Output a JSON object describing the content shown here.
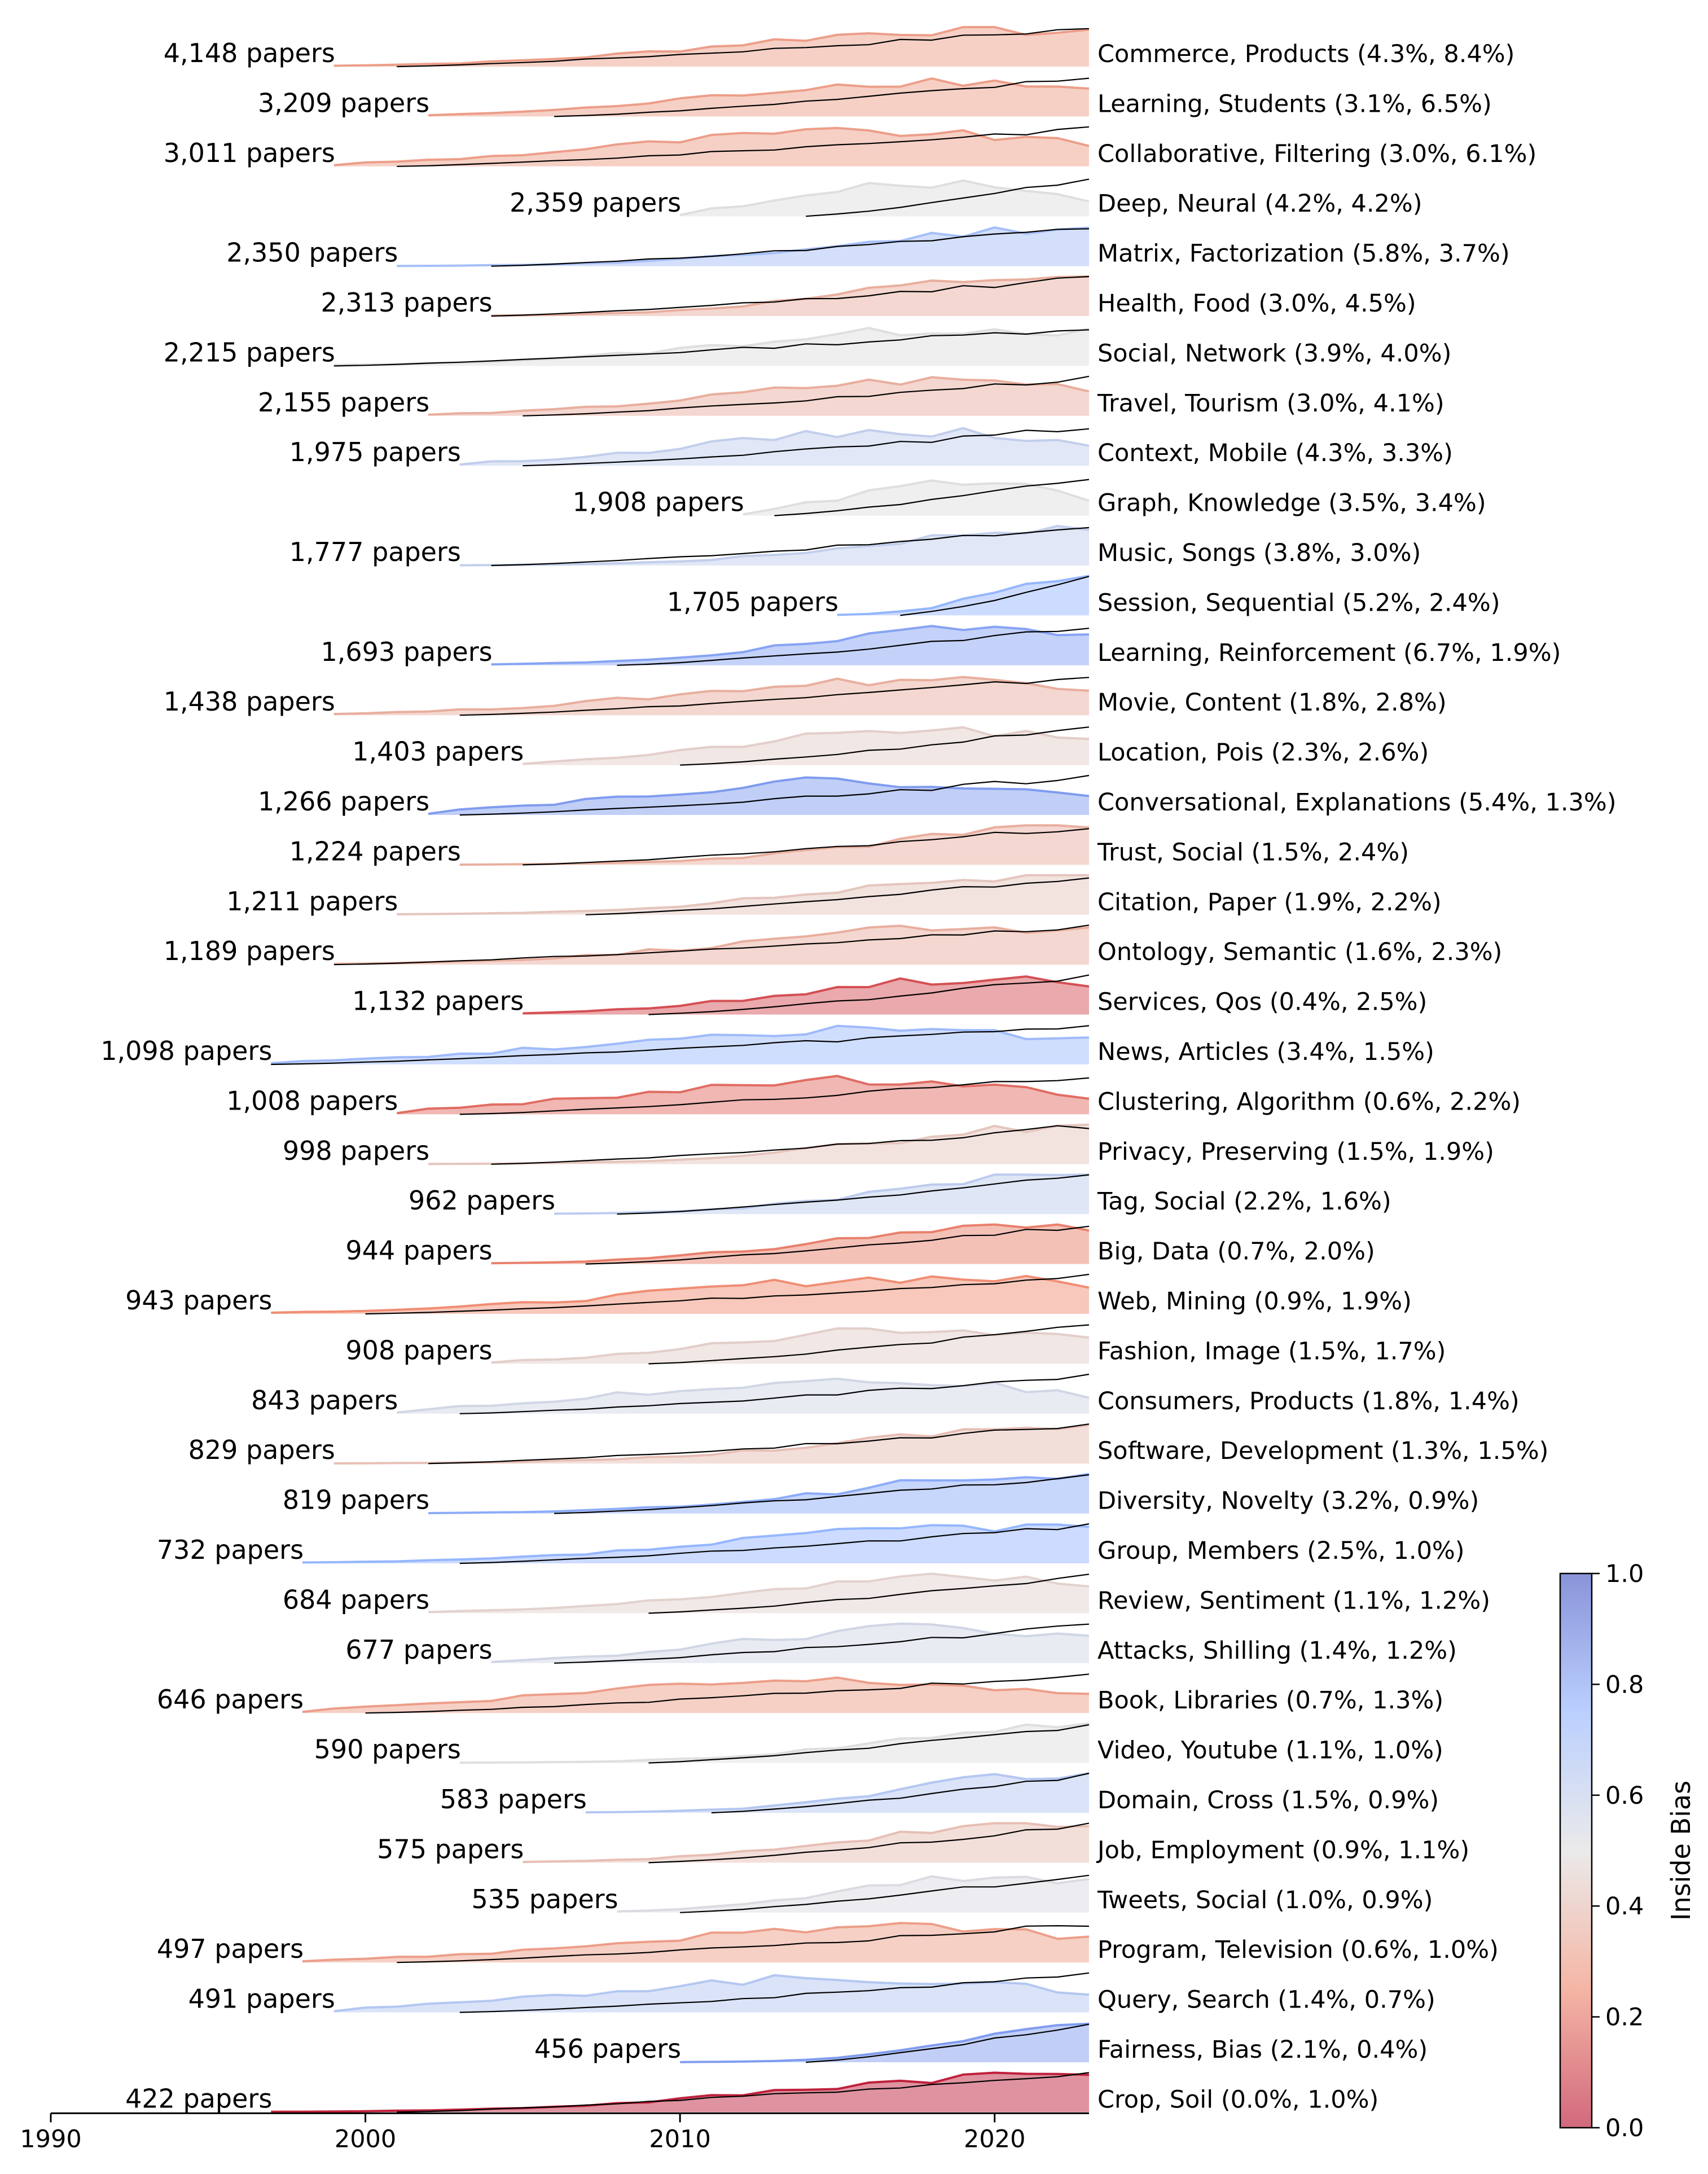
{
  "chart_data": {
    "type": "area",
    "x_axis": {
      "ticks": [
        "1990",
        "2000",
        "2010",
        "2020"
      ],
      "min": 1990,
      "max": 2023
    },
    "colorbar": {
      "label": "Inside Bias",
      "ticks": [
        "0.0",
        "0.2",
        "0.4",
        "0.6",
        "0.8",
        "1.0"
      ],
      "range": [
        0,
        1
      ]
    },
    "series": [
      {
        "papers_label": "4,148 papers",
        "topic_label": "Commerce, Products (4.3%, 8.4%)",
        "bias": 0.3,
        "start": 1999,
        "line_start": 2001
      },
      {
        "papers_label": "3,209 papers",
        "topic_label": "Learning, Students (3.1%, 6.5%)",
        "bias": 0.3,
        "start": 2002,
        "line_start": 2006
      },
      {
        "papers_label": "3,011 papers",
        "topic_label": "Collaborative, Filtering (3.0%, 6.1%)",
        "bias": 0.3,
        "start": 1999,
        "line_start": 2001
      },
      {
        "papers_label": "2,359 papers",
        "topic_label": "Deep, Neural (4.2%, 4.2%)",
        "bias": 0.5,
        "start": 2010,
        "line_start": 2014
      },
      {
        "papers_label": "2,350 papers",
        "topic_label": "Matrix, Factorization (5.8%, 3.7%)",
        "bias": 0.7,
        "start": 2001,
        "line_start": 2004
      },
      {
        "papers_label": "2,313 papers",
        "topic_label": "Health, Food (3.0%, 4.5%)",
        "bias": 0.35,
        "start": 2004,
        "line_start": 2004
      },
      {
        "papers_label": "2,215 papers",
        "topic_label": "Social, Network (3.9%, 4.0%)",
        "bias": 0.5,
        "start": 1999,
        "line_start": 1999
      },
      {
        "papers_label": "2,155 papers",
        "topic_label": "Travel, Tourism (3.0%, 4.1%)",
        "bias": 0.35,
        "start": 2002,
        "line_start": 2005
      },
      {
        "papers_label": "1,975 papers",
        "topic_label": "Context, Mobile (4.3%, 3.3%)",
        "bias": 0.6,
        "start": 2003,
        "line_start": 2005
      },
      {
        "papers_label": "1,908 papers",
        "topic_label": "Graph, Knowledge (3.5%, 3.4%)",
        "bias": 0.5,
        "start": 2012,
        "line_start": 2013
      },
      {
        "papers_label": "1,777 papers",
        "topic_label": "Music, Songs (3.8%, 3.0%)",
        "bias": 0.6,
        "start": 2003,
        "line_start": 2004
      },
      {
        "papers_label": "1,705 papers",
        "topic_label": "Session, Sequential (5.2%, 2.4%)",
        "bias": 0.75,
        "start": 2015,
        "line_start": 2017
      },
      {
        "papers_label": "1,693 papers",
        "topic_label": "Learning, Reinforcement (6.7%, 1.9%)",
        "bias": 0.8,
        "start": 2004,
        "line_start": 2008
      },
      {
        "papers_label": "1,438 papers",
        "topic_label": "Movie, Content (1.8%, 2.8%)",
        "bias": 0.35,
        "start": 1999,
        "line_start": 2003
      },
      {
        "papers_label": "1,403 papers",
        "topic_label": "Location, Pois (2.3%, 2.6%)",
        "bias": 0.45,
        "start": 2005,
        "line_start": 2010
      },
      {
        "papers_label": "1,266 papers",
        "topic_label": "Conversational, Explanations (5.4%, 1.3%)",
        "bias": 0.82,
        "start": 2002,
        "line_start": 2003
      },
      {
        "papers_label": "1,224 papers",
        "topic_label": "Trust, Social (1.5%, 2.4%)",
        "bias": 0.35,
        "start": 2003,
        "line_start": 2005
      },
      {
        "papers_label": "1,211 papers",
        "topic_label": "Citation, Paper (1.9%, 2.2%)",
        "bias": 0.42,
        "start": 2001,
        "line_start": 2007
      },
      {
        "papers_label": "1,189 papers",
        "topic_label": "Ontology, Semantic (1.6%, 2.3%)",
        "bias": 0.35,
        "start": 1999,
        "line_start": 1999
      },
      {
        "papers_label": "1,132 papers",
        "topic_label": "Services, Qos (0.4%, 2.5%)",
        "bias": 0.12,
        "start": 2005,
        "line_start": 2009
      },
      {
        "papers_label": "1,098 papers",
        "topic_label": "News, Articles (3.4%, 1.5%)",
        "bias": 0.72,
        "start": 1997,
        "line_start": 1997
      },
      {
        "papers_label": "1,008 papers",
        "topic_label": "Clustering, Algorithm (0.6%, 2.2%)",
        "bias": 0.18,
        "start": 2001,
        "line_start": 2003
      },
      {
        "papers_label": "998 papers",
        "topic_label": "Privacy, Preserving (1.5%, 1.9%)",
        "bias": 0.42,
        "start": 2002,
        "line_start": 2004
      },
      {
        "papers_label": "962 papers",
        "topic_label": "Tag, Social (2.2%, 1.6%)",
        "bias": 0.62,
        "start": 2006,
        "line_start": 2008
      },
      {
        "papers_label": "944 papers",
        "topic_label": "Big, Data (0.7%, 2.0%)",
        "bias": 0.22,
        "start": 2004,
        "line_start": 2007
      },
      {
        "papers_label": "943 papers",
        "topic_label": "Web, Mining (0.9%, 1.9%)",
        "bias": 0.25,
        "start": 1997,
        "line_start": 2000
      },
      {
        "papers_label": "908 papers",
        "topic_label": "Fashion, Image (1.5%, 1.7%)",
        "bias": 0.45,
        "start": 2004,
        "line_start": 2009
      },
      {
        "papers_label": "843 papers",
        "topic_label": "Consumers, Products (1.8%, 1.4%)",
        "bias": 0.55,
        "start": 2001,
        "line_start": 2003
      },
      {
        "papers_label": "829 papers",
        "topic_label": "Software, Development (1.3%, 1.5%)",
        "bias": 0.4,
        "start": 1999,
        "line_start": 2002
      },
      {
        "papers_label": "819 papers",
        "topic_label": "Diversity, Novelty (3.2%, 0.9%)",
        "bias": 0.78,
        "start": 2002,
        "line_start": 2006
      },
      {
        "papers_label": "732 papers",
        "topic_label": "Group, Members (2.5%, 1.0%)",
        "bias": 0.75,
        "start": 1998,
        "line_start": 2003
      },
      {
        "papers_label": "684 papers",
        "topic_label": "Review, Sentiment (1.1%, 1.2%)",
        "bias": 0.46,
        "start": 2002,
        "line_start": 2009
      },
      {
        "papers_label": "677 papers",
        "topic_label": "Attacks, Shilling (1.4%, 1.2%)",
        "bias": 0.55,
        "start": 2004,
        "line_start": 2006
      },
      {
        "papers_label": "646 papers",
        "topic_label": "Book, Libraries (0.7%, 1.3%)",
        "bias": 0.3,
        "start": 1998,
        "line_start": 2000
      },
      {
        "papers_label": "590 papers",
        "topic_label": "Video, Youtube (1.1%, 1.0%)",
        "bias": 0.5,
        "start": 2003,
        "line_start": 2009
      },
      {
        "papers_label": "583 papers",
        "topic_label": "Domain, Cross (1.5%, 0.9%)",
        "bias": 0.65,
        "start": 2007,
        "line_start": 2011
      },
      {
        "papers_label": "575 papers",
        "topic_label": "Job, Employment (0.9%, 1.1%)",
        "bias": 0.4,
        "start": 2005,
        "line_start": 2009
      },
      {
        "papers_label": "535 papers",
        "topic_label": "Tweets, Social (1.0%, 0.9%)",
        "bias": 0.52,
        "start": 2008,
        "line_start": 2010
      },
      {
        "papers_label": "497 papers",
        "topic_label": "Program, Television (0.6%, 1.0%)",
        "bias": 0.3,
        "start": 1998,
        "line_start": 2001
      },
      {
        "papers_label": "491 papers",
        "topic_label": "Query, Search (1.4%, 0.7%)",
        "bias": 0.65,
        "start": 1999,
        "line_start": 2003
      },
      {
        "papers_label": "456 papers",
        "topic_label": "Fairness, Bias (2.1%, 0.4%)",
        "bias": 0.82,
        "start": 2010,
        "line_start": 2014
      },
      {
        "papers_label": "422 papers",
        "topic_label": "Crop, Soil (0.0%, 1.0%)",
        "bias": 0.02,
        "start": 1997,
        "line_start": 2001
      }
    ]
  }
}
